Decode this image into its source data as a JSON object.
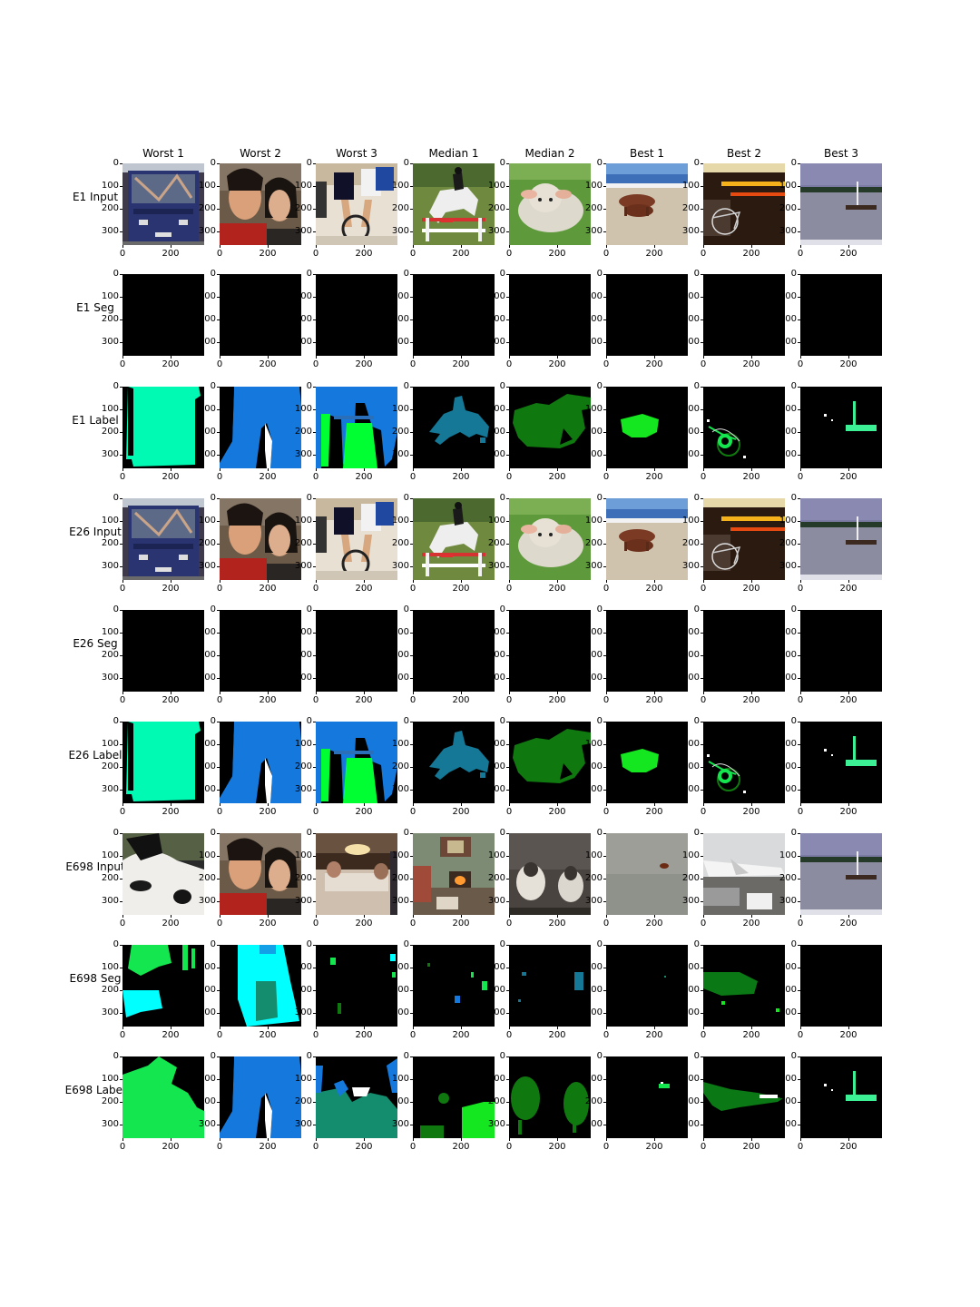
{
  "columns": [
    "Worst 1",
    "Worst 2",
    "Worst 3",
    "Median 1",
    "Median 2",
    "Best 1",
    "Best 2",
    "Best 3"
  ],
  "axis": {
    "yticks": [
      "0",
      "100",
      "200",
      "300"
    ],
    "xticks": [
      "0",
      "200"
    ]
  },
  "rows": [
    {
      "label": "E1 Input",
      "kind": "input",
      "panels": [
        "bus",
        "two-people",
        "cyclists",
        "horse-jump",
        "lamb",
        "cows-beach",
        "bike-night",
        "sailboat"
      ]
    },
    {
      "label": "E1 Seg",
      "kind": "blank",
      "panels": [
        "black",
        "black",
        "black",
        "black",
        "black",
        "black",
        "black",
        "black"
      ]
    },
    {
      "label": "E1 Label",
      "kind": "label",
      "panels": [
        "bus-mask",
        "person-mask",
        "cyclist-mask",
        "horse-mask",
        "sheep-mask",
        "cow-mask",
        "bike-mask",
        "boat-mask"
      ]
    },
    {
      "label": "E26 Input",
      "kind": "input",
      "panels": [
        "bus",
        "two-people",
        "cyclists",
        "horse-jump",
        "lamb",
        "cows-beach",
        "bike-night",
        "sailboat"
      ]
    },
    {
      "label": "E26 Seg",
      "kind": "blank",
      "panels": [
        "black",
        "black",
        "black",
        "black",
        "black",
        "black",
        "black",
        "black"
      ]
    },
    {
      "label": "E26 Label",
      "kind": "label",
      "panels": [
        "bus-mask",
        "person-mask",
        "cyclist-mask",
        "horse-mask",
        "sheep-mask",
        "cow-mask",
        "bike-mask",
        "boat-mask"
      ]
    },
    {
      "label": "E698 Input",
      "kind": "input",
      "panels": [
        "cow-closeup",
        "two-people",
        "dining-room",
        "living-room",
        "two-sheep",
        "foggy-water",
        "airplane",
        "sailboat"
      ]
    },
    {
      "label": "E698 Seg",
      "kind": "seg",
      "panels": [
        "seg-cow",
        "seg-people",
        "seg-dining",
        "seg-living",
        "seg-sheep",
        "seg-fog",
        "seg-plane",
        "black"
      ]
    },
    {
      "label": "E698 Label",
      "kind": "label",
      "panels": [
        "cow2-mask",
        "person-mask",
        "dining-mask",
        "living-mask",
        "sheep2-mask",
        "bird-mask",
        "plane-mask",
        "boat-mask"
      ]
    }
  ],
  "colors": {
    "bus": "#00fab4",
    "person": "#1478dc",
    "bicycle": "#00ff32",
    "horse": "#147896",
    "sheep": "#0f780f",
    "cow": "#14e620",
    "boat": "#3cf096",
    "plane": "#0a7814",
    "cyan": "#00ffff",
    "green": "#14e650",
    "teal": "#148c6e",
    "black": "#000000"
  }
}
